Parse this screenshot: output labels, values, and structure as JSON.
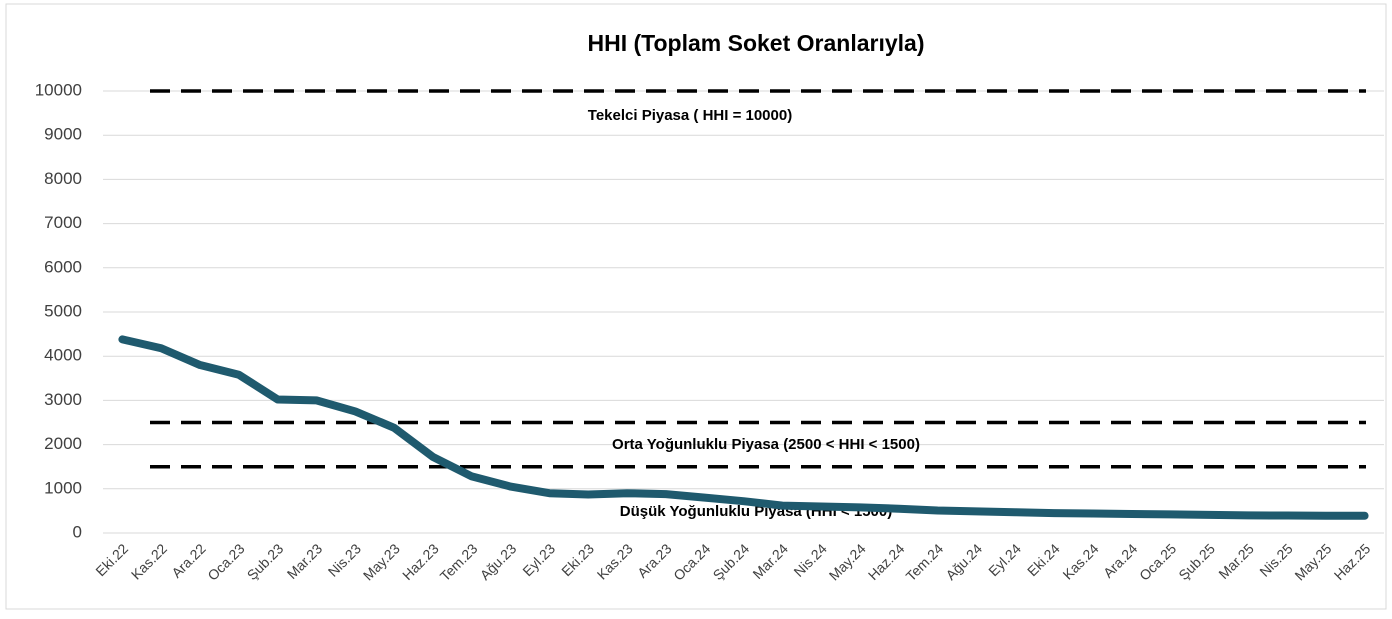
{
  "chart_data": {
    "type": "line",
    "title": "HHI (Toplam Soket Oranlarıyla)",
    "categories": [
      "Eki.22",
      "Kas.22",
      "Ara.22",
      "Oca.23",
      "Şub.23",
      "Mar.23",
      "Nis.23",
      "May.23",
      "Haz.23",
      "Tem.23",
      "Ağu.23",
      "Eyl.23",
      "Eki.23",
      "Kas.23",
      "Ara.23",
      "Oca.24",
      "Şub.24",
      "Mar.24",
      "Nis.24",
      "May.24",
      "Haz.24",
      "Tem.24",
      "Ağu.24",
      "Eyl.24",
      "Eki.24",
      "Kas.24",
      "Ara.24",
      "Oca.25",
      "Şub.25",
      "Mar.25",
      "Nis.25",
      "May.25",
      "Haz.25"
    ],
    "series": [
      {
        "color": "#1f5a6e",
        "values": [
          4380,
          4180,
          3800,
          3580,
          3020,
          3000,
          2750,
          2380,
          1720,
          1280,
          1050,
          900,
          870,
          900,
          880,
          800,
          720,
          620,
          600,
          580,
          550,
          510,
          490,
          470,
          450,
          440,
          430,
          420,
          410,
          400,
          395,
          390,
          390
        ]
      }
    ],
    "ylim": [
      0,
      10000
    ],
    "yticks": [
      0,
      1000,
      2000,
      3000,
      4000,
      5000,
      6000,
      7000,
      8000,
      9000,
      10000
    ],
    "grid": true,
    "reference_lines": [
      10000,
      2500,
      1500
    ],
    "annotations": [
      "Tekelci Piyasa ( HHI = 10000)",
      "Orta Yoğunluklu Piyasa (2500 < HHI < 1500)",
      "Düşük Yoğunluklu Piyasa (HHI < 1500)"
    ]
  }
}
